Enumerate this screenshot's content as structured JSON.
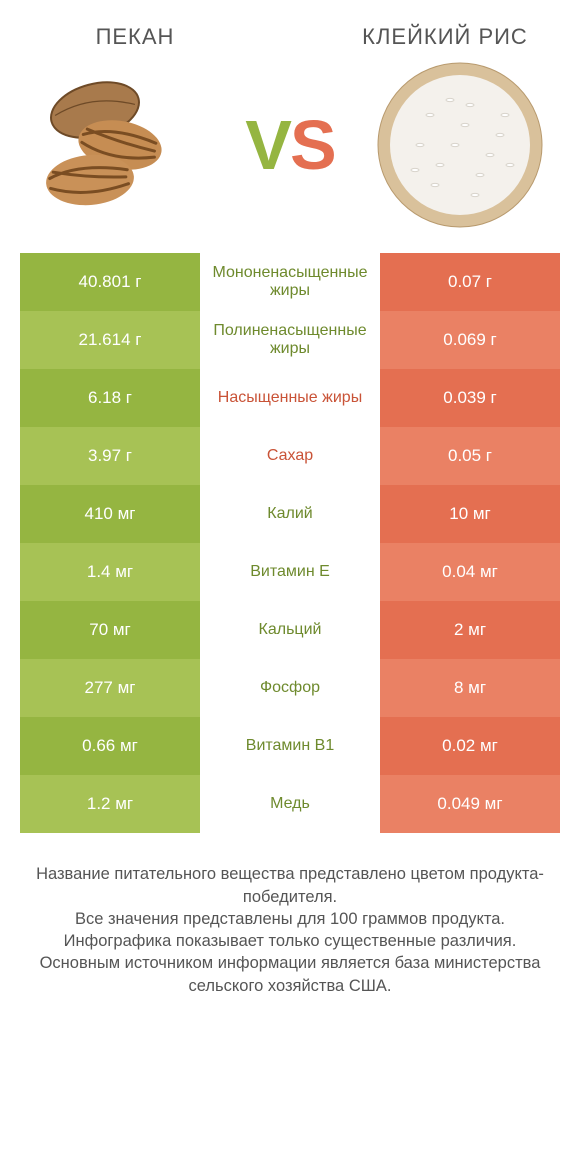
{
  "colors": {
    "left_a": "#95b541",
    "left_b": "#a7c255",
    "right_a": "#e46f51",
    "right_b": "#ea8164",
    "text_left": "#6e8a2d",
    "text_right": "#c95337"
  },
  "header": {
    "left_title": "ПЕКАН",
    "right_title": "КЛЕЙКИЙ РИС",
    "vs_v": "V",
    "vs_s": "S"
  },
  "rows": [
    {
      "left": "40.801 г",
      "mid": "Мононенасыщенные жиры",
      "right": "0.07 г",
      "winner": "left"
    },
    {
      "left": "21.614 г",
      "mid": "Полиненасыщенные жиры",
      "right": "0.069 г",
      "winner": "left"
    },
    {
      "left": "6.18 г",
      "mid": "Насыщенные жиры",
      "right": "0.039 г",
      "winner": "right"
    },
    {
      "left": "3.97 г",
      "mid": "Сахар",
      "right": "0.05 г",
      "winner": "right"
    },
    {
      "left": "410 мг",
      "mid": "Калий",
      "right": "10 мг",
      "winner": "left"
    },
    {
      "left": "1.4 мг",
      "mid": "Витамин E",
      "right": "0.04 мг",
      "winner": "left"
    },
    {
      "left": "70 мг",
      "mid": "Кальций",
      "right": "2 мг",
      "winner": "left"
    },
    {
      "left": "277 мг",
      "mid": "Фосфор",
      "right": "8 мг",
      "winner": "left"
    },
    {
      "left": "0.66 мг",
      "mid": "Витамин B1",
      "right": "0.02 мг",
      "winner": "left"
    },
    {
      "left": "1.2 мг",
      "mid": "Медь",
      "right": "0.049 мг",
      "winner": "left"
    }
  ],
  "footer": {
    "l1": "Название питательного вещества представлено цветом продукта-победителя.",
    "l2": "Все значения представлены для 100 граммов продукта.",
    "l3": "Инфографика показывает только существенные различия.",
    "l4": "Основным источником информации является база министерства сельского хозяйства США."
  }
}
